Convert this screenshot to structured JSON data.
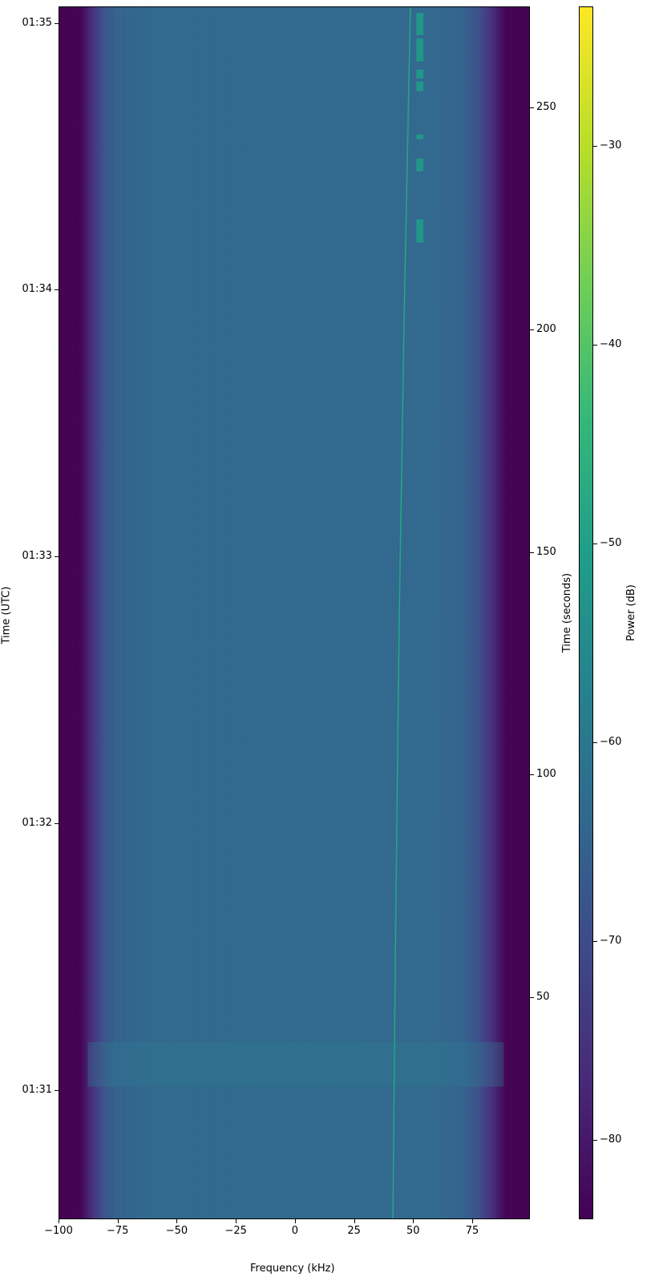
{
  "chart_data": {
    "type": "heatmap",
    "xlabel": "Frequency (kHz)",
    "ylabel_left": "Time (UTC)",
    "ylabel_right": "Time (seconds)",
    "colorbar_label": "Power (dB)",
    "colormap": "viridis",
    "xlim": [
      -100,
      99.4
    ],
    "ylim_seconds": [
      0,
      272.7
    ],
    "clim": [
      -84,
      -23
    ],
    "x_ticks": [
      -100,
      -75,
      -50,
      -25,
      0,
      25,
      50,
      75
    ],
    "x_tick_labels": [
      "−100",
      "−75",
      "−50",
      "−25",
      "0",
      "25",
      "50",
      "75"
    ],
    "y_left_ticks_seconds": [
      29,
      89,
      149,
      209,
      269
    ],
    "y_left_tick_labels": [
      "01:31",
      "01:32",
      "01:33",
      "01:34",
      "01:35"
    ],
    "y_right_ticks": [
      50,
      100,
      150,
      200,
      250
    ],
    "y_right_tick_labels": [
      "50",
      "100",
      "150",
      "200",
      "250"
    ],
    "colorbar_ticks": [
      -80,
      -70,
      -60,
      -50,
      -40,
      -30
    ],
    "colorbar_tick_labels": [
      "−80",
      "−70",
      "−60",
      "−50",
      "−40",
      "−30"
    ],
    "noise_floor_db": -65,
    "passband_kHz": [
      -88,
      88
    ],
    "drifting_signal": [
      {
        "t": 0,
        "f": 41.1
      },
      {
        "t": 68,
        "f": 42.3
      },
      {
        "t": 136,
        "f": 43.8
      },
      {
        "t": 204,
        "f": 45.9
      },
      {
        "t": 272.7,
        "f": 48.5
      }
    ],
    "bursts": [
      {
        "f": [
          51,
          54
        ],
        "t": [
          266.4,
          271.4
        ]
      },
      {
        "f": [
          51,
          54
        ],
        "t": [
          260.5,
          265.7
        ]
      },
      {
        "f": [
          51,
          54
        ],
        "t": [
          256.7,
          258.7
        ]
      },
      {
        "f": [
          51,
          54
        ],
        "t": [
          253.8,
          256.0
        ]
      },
      {
        "f": [
          51,
          54
        ],
        "t": [
          243.0,
          244.1
        ]
      },
      {
        "f": [
          51,
          54
        ],
        "t": [
          235.8,
          238.7
        ]
      },
      {
        "f": [
          51,
          54
        ],
        "t": [
          219.8,
          225.0
        ]
      }
    ],
    "horizontal_band_seconds": [
      30,
      40
    ]
  }
}
